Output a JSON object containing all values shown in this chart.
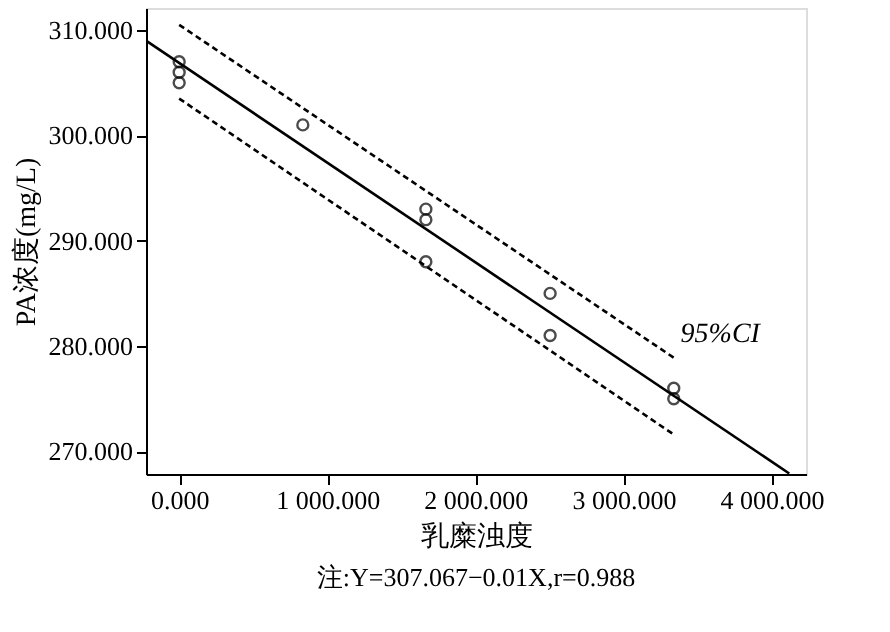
{
  "chart_data": {
    "type": "scatter",
    "xlabel": "乳糜浊度",
    "ylabel": "PA浓度(mg/L)",
    "xlim": [
      -224,
      4233
    ],
    "ylim": [
      267.85,
      312.1
    ],
    "xticks": [
      {
        "value": 0,
        "label": "0.000"
      },
      {
        "value": 1000,
        "label": "1 000.000"
      },
      {
        "value": 2000,
        "label": "2 000.000"
      },
      {
        "value": 3000,
        "label": "3 000.000"
      },
      {
        "value": 4000,
        "label": "4 000.000"
      }
    ],
    "yticks": [
      {
        "value": 270,
        "label": "270.000"
      },
      {
        "value": 280,
        "label": "280.000"
      },
      {
        "value": 290,
        "label": "290.000"
      },
      {
        "value": 300,
        "label": "300.000"
      },
      {
        "value": 310,
        "label": "310.000"
      }
    ],
    "grid": false,
    "series": [
      {
        "marker": "circle",
        "color": "#000000",
        "x": [
          0,
          0,
          0,
          835,
          1666,
          1666,
          1666,
          2505,
          2505,
          3340,
          3340
        ],
        "values": [
          307,
          306,
          305,
          301,
          293,
          292,
          288,
          285,
          281,
          276,
          275
        ]
      },
      {
        "type": "line",
        "line_style": "solid",
        "color": "#000000",
        "x": [
          -224,
          4120
        ],
        "values": [
          309.0,
          267.9
        ]
      },
      {
        "type": "line",
        "line_style": "dashed",
        "color": "#000000",
        "x": [
          0,
          3350
        ],
        "values": [
          310.5,
          278.8
        ]
      },
      {
        "type": "line",
        "line_style": "dashed",
        "color": "#000000",
        "x": [
          0,
          3340
        ],
        "values": [
          303.5,
          271.6
        ]
      }
    ],
    "annotations": [
      "95%CI",
      "注:Y=307.067−0.01X,r=0.988"
    ]
  }
}
